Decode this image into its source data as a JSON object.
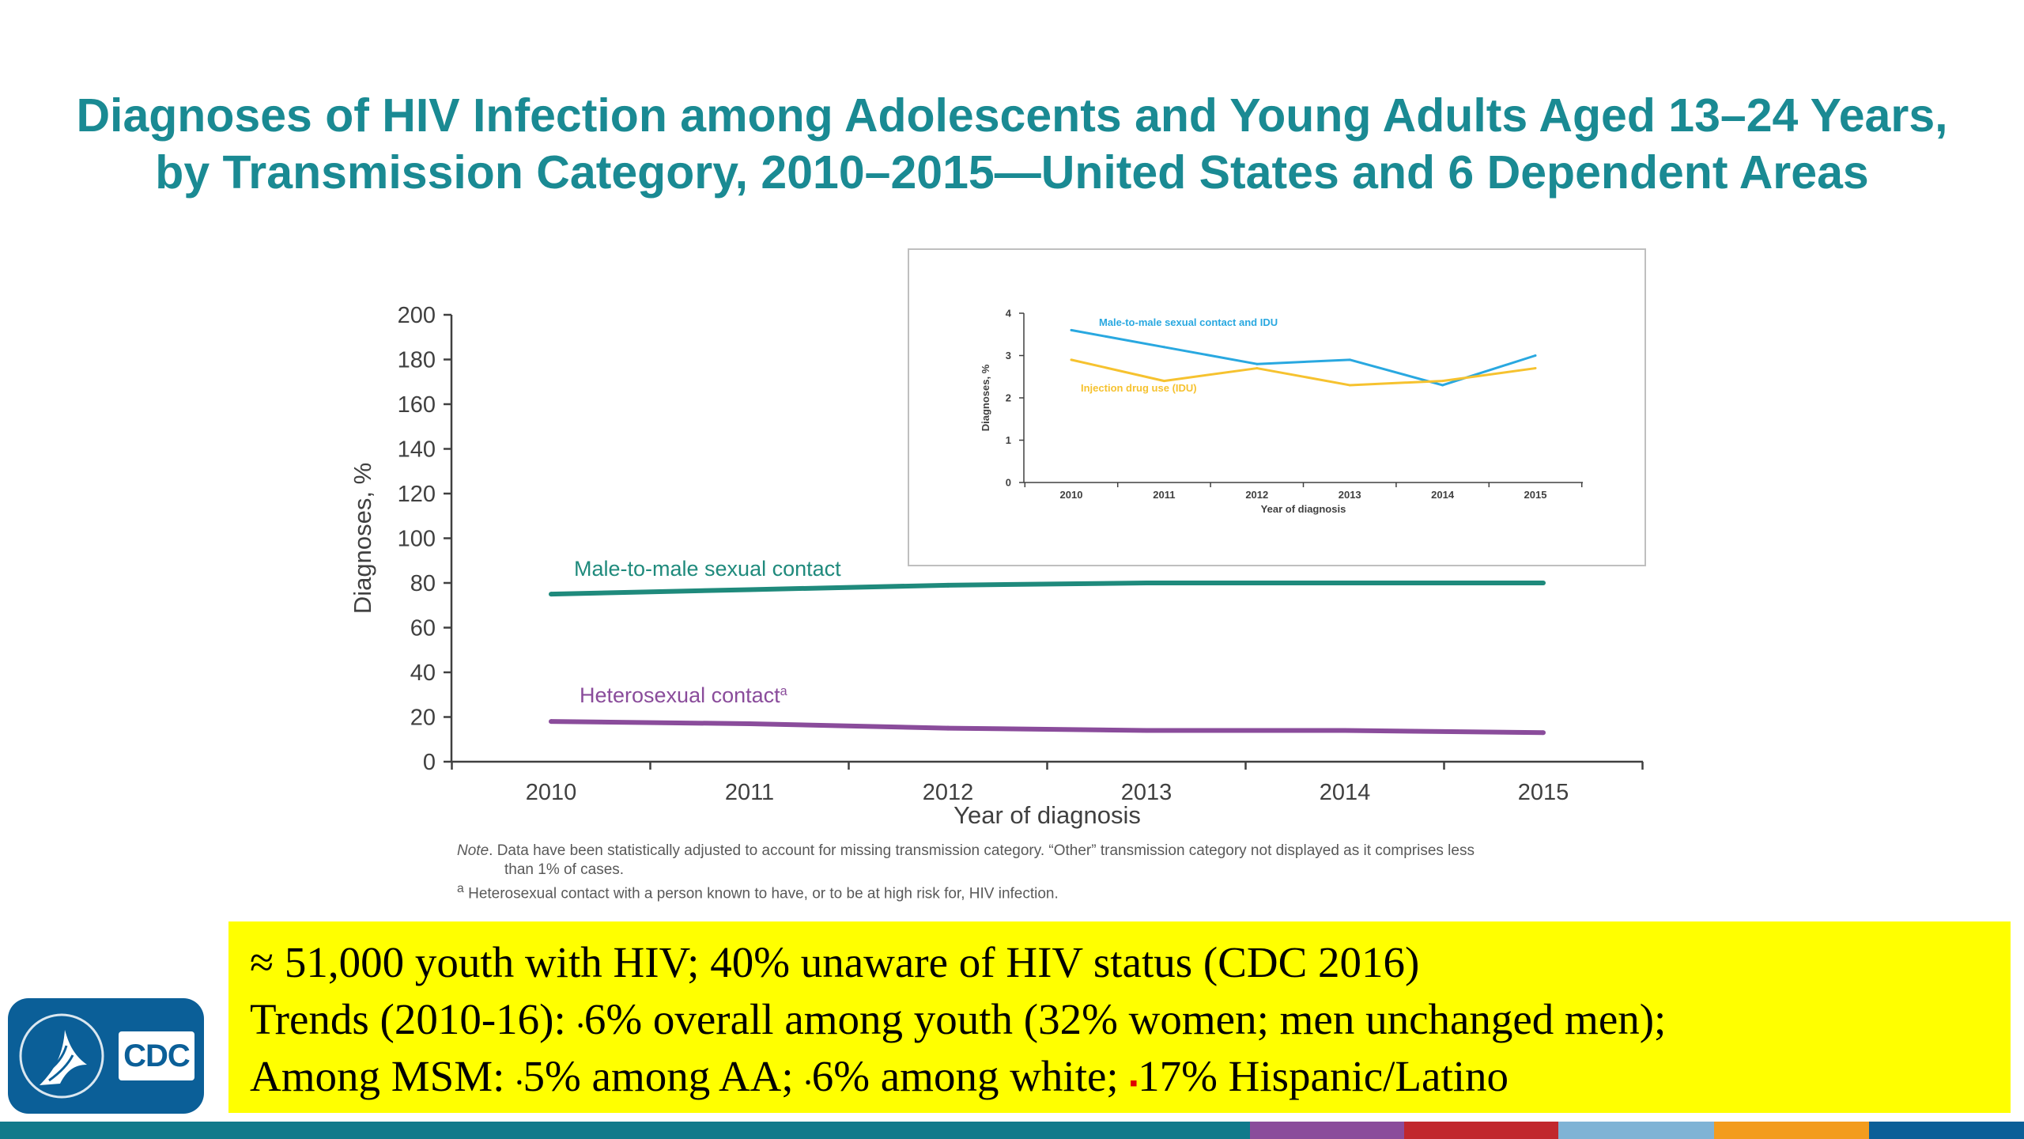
{
  "title": {
    "line1": "Diagnoses of HIV Infection among Adolescents and Young Adults Aged 13–24 Years,",
    "line2": "by Transmission Category, 2010–2015—United States and 6 Dependent Areas"
  },
  "chart_data": [
    {
      "type": "line",
      "xlabel": "Year of diagnosis",
      "ylabel": "Diagnoses, %",
      "x": [
        2010,
        2011,
        2012,
        2013,
        2014,
        2015
      ],
      "ylim": [
        0,
        200
      ],
      "yticks": [
        0,
        20,
        40,
        60,
        80,
        100,
        120,
        140,
        160,
        180,
        200
      ],
      "grid": false,
      "series": [
        {
          "name": "Male-to-male sexual contact",
          "color": "#1f8a7c",
          "values": [
            75,
            77,
            79,
            80,
            80,
            80
          ]
        },
        {
          "name": "Heterosexual contact",
          "name_sup": "a",
          "color": "#8a4c9b",
          "values": [
            18,
            17,
            15,
            14,
            14,
            13
          ]
        }
      ]
    },
    {
      "type": "line",
      "xlabel": "Year of diagnosis",
      "ylabel": "Diagnoses, %",
      "x": [
        2010,
        2011,
        2012,
        2013,
        2014,
        2015
      ],
      "ylim": [
        0,
        4
      ],
      "yticks": [
        0,
        1,
        2,
        3,
        4
      ],
      "grid": false,
      "series": [
        {
          "name": "Male-to-male sexual contact and IDU",
          "color": "#29a8e0",
          "values": [
            3.6,
            3.2,
            2.8,
            2.9,
            2.3,
            3.0
          ]
        },
        {
          "name": "Injection drug use (IDU)",
          "color": "#f6c22f",
          "values": [
            2.9,
            2.4,
            2.7,
            2.3,
            2.4,
            2.7
          ]
        }
      ]
    }
  ],
  "note": {
    "label": "Note",
    "text": ". Data have been statistically adjusted to account for missing transmission category. “Other” transmission category not displayed as it comprises less",
    "text_cont": "than 1% of cases.",
    "footnote_mark": "a",
    "footnote": " Heterosexual contact with a person known to have, or to be at high risk for, HIV infection."
  },
  "banner": {
    "line1": "≈ 51,000 youth with HIV; 40% unaware of HIV status (CDC 2016)",
    "line2_a": "Trends (2010-16): ",
    "line2_mark": "ꞏ",
    "line2_b": "6% overall among youth (32% women; men unchanged men);",
    "line3_a": "Among MSM: ",
    "line3_mark1": "ꞏ",
    "line3_b": "5% among AA; ",
    "line3_mark2": "ꞏ",
    "line3_c": "6% among white; ",
    "line3_mark3": "▪",
    "line3_d": "17% Hispanic/Latino"
  },
  "logo": {
    "text": "CDC",
    "color": "#0b5f98"
  },
  "stripe_colors": [
    "#117a8b",
    "#8a4c9b",
    "#c1282d",
    "#7fb3d5",
    "#f39c1d",
    "#0b5f98"
  ]
}
